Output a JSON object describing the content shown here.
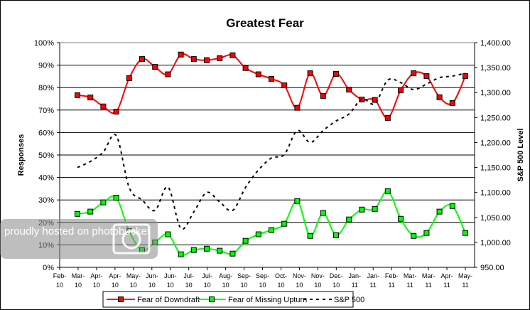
{
  "chart_data": {
    "type": "line",
    "title": "Greatest Fear",
    "ylabel": "Responses",
    "y2label": "S&P 500 Level",
    "ylim": [
      0,
      100
    ],
    "y2lim": [
      950,
      1400
    ],
    "yticks": [
      "0%",
      "10%",
      "20%",
      "30%",
      "40%",
      "50%",
      "60%",
      "70%",
      "80%",
      "90%",
      "100%"
    ],
    "y2ticks": [
      "950.00",
      "1,000.00",
      "1,050.00",
      "1,100.00",
      "1,150.00",
      "1,200.00",
      "1,250.00",
      "1,300.00",
      "1,350.00",
      "1,400.00"
    ],
    "xtick_labels": [
      [
        "Feb-",
        "10"
      ],
      [
        "Mar-",
        "10"
      ],
      [
        "Apr-",
        "10"
      ],
      [
        "Apr-",
        "10"
      ],
      [
        "May-",
        "10"
      ],
      [
        "Jun-",
        "10"
      ],
      [
        "Jun-",
        "10"
      ],
      [
        "Jul-",
        "10"
      ],
      [
        "Jul-",
        "10"
      ],
      [
        "Aug-",
        "10"
      ],
      [
        "Sep-",
        "10"
      ],
      [
        "Sep-",
        "10"
      ],
      [
        "Oct-",
        "10"
      ],
      [
        "Nov-",
        "10"
      ],
      [
        "Nov-",
        "10"
      ],
      [
        "Dec-",
        "10"
      ],
      [
        "Jan-",
        "11"
      ],
      [
        "Jan-",
        "11"
      ],
      [
        "Feb-",
        "11"
      ],
      [
        "Mar-",
        "11"
      ],
      [
        "Mar-",
        "11"
      ],
      [
        "Apr-",
        "11"
      ],
      [
        "May-",
        "11"
      ]
    ],
    "grid": true,
    "legend_position": "bottom",
    "series": [
      {
        "name": "Fear of Downdraft",
        "axis": "left",
        "color": "#ff0000",
        "marker_color": "#ff0000",
        "values": [
          76.6,
          75.6,
          71.6,
          69.3,
          84.2,
          92.7,
          89.2,
          85.9,
          94.7,
          92.7,
          92.2,
          93.1,
          94.4,
          88.7,
          85.9,
          83.9,
          81.0,
          71.0,
          86.4,
          76.3,
          86.1,
          79.1,
          74.7,
          74.5,
          66.5,
          78.8,
          86.4,
          85.1,
          75.7,
          73.1,
          85.1
        ]
      },
      {
        "name": "Fear of Missing Upturn",
        "axis": "left",
        "color": "#00ff00",
        "marker_color": "#00ff00",
        "values": [
          23.8,
          24.8,
          28.9,
          31.0,
          16.1,
          7.7,
          11.1,
          14.7,
          5.8,
          7.7,
          8.3,
          7.4,
          6.1,
          11.8,
          14.7,
          16.6,
          19.4,
          29.5,
          14.0,
          24.2,
          14.3,
          21.3,
          25.7,
          26.0,
          33.9,
          21.6,
          14.0,
          15.3,
          24.8,
          27.3,
          15.3
        ]
      },
      {
        "name": "S&P 500",
        "axis": "right",
        "color": "#000000",
        "dashed": true,
        "values": [
          1150,
          1162,
          1181,
          1214,
          1110,
          1085,
          1064,
          1111,
          1028,
          1061,
          1100,
          1081,
          1064,
          1110,
          1145,
          1169,
          1176,
          1224,
          1200,
          1224,
          1243,
          1257,
          1287,
          1278,
          1325,
          1320,
          1306,
          1317,
          1330,
          1333,
          1339
        ]
      }
    ]
  },
  "watermark": "proudly hosted on photobucket"
}
